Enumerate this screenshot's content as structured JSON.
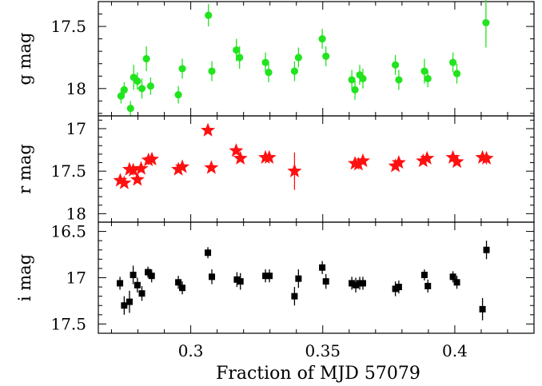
{
  "chart_data": [
    {
      "type": "scatter",
      "ylabel": "g mag",
      "ylim": [
        18.22,
        17.3
      ],
      "inverted_y": true,
      "yticks": [
        17.5,
        18
      ],
      "ytick_labels": [
        "17.5",
        "18"
      ],
      "marker": "circle",
      "color": "#22e41e",
      "points": [
        {
          "x": 0.2736,
          "y": 18.06,
          "err": 0.06
        },
        {
          "x": 0.2748,
          "y": 18.01,
          "err": 0.06
        },
        {
          "x": 0.2772,
          "y": 18.16,
          "err": 0.06
        },
        {
          "x": 0.2784,
          "y": 17.91,
          "err": 0.1
        },
        {
          "x": 0.2798,
          "y": 17.94,
          "err": 0.07
        },
        {
          "x": 0.2815,
          "y": 18.0,
          "err": 0.08
        },
        {
          "x": 0.2832,
          "y": 17.76,
          "err": 0.1
        },
        {
          "x": 0.2848,
          "y": 17.98,
          "err": 0.07
        },
        {
          "x": 0.2953,
          "y": 18.05,
          "err": 0.07
        },
        {
          "x": 0.2968,
          "y": 17.84,
          "err": 0.08
        },
        {
          "x": 0.3067,
          "y": 17.41,
          "err": 0.09
        },
        {
          "x": 0.308,
          "y": 17.86,
          "err": 0.08
        },
        {
          "x": 0.3173,
          "y": 17.69,
          "err": 0.09
        },
        {
          "x": 0.3185,
          "y": 17.75,
          "err": 0.09
        },
        {
          "x": 0.3283,
          "y": 17.79,
          "err": 0.08
        },
        {
          "x": 0.3295,
          "y": 17.87,
          "err": 0.08
        },
        {
          "x": 0.3393,
          "y": 17.86,
          "err": 0.08
        },
        {
          "x": 0.3408,
          "y": 17.75,
          "err": 0.08
        },
        {
          "x": 0.3498,
          "y": 17.6,
          "err": 0.08
        },
        {
          "x": 0.3512,
          "y": 17.74,
          "err": 0.08
        },
        {
          "x": 0.361,
          "y": 17.93,
          "err": 0.08
        },
        {
          "x": 0.3622,
          "y": 18.01,
          "err": 0.08
        },
        {
          "x": 0.364,
          "y": 17.89,
          "err": 0.08
        },
        {
          "x": 0.3652,
          "y": 17.92,
          "err": 0.08
        },
        {
          "x": 0.3775,
          "y": 17.81,
          "err": 0.08
        },
        {
          "x": 0.3788,
          "y": 17.93,
          "err": 0.08
        },
        {
          "x": 0.3885,
          "y": 17.86,
          "err": 0.1
        },
        {
          "x": 0.3898,
          "y": 17.92,
          "err": 0.07
        },
        {
          "x": 0.3993,
          "y": 17.79,
          "err": 0.08
        },
        {
          "x": 0.4008,
          "y": 17.88,
          "err": 0.08
        },
        {
          "x": 0.4118,
          "y": 17.47,
          "err": 0.2
        }
      ]
    },
    {
      "type": "scatter",
      "ylabel": "r mag",
      "ylim": [
        18.1,
        16.85
      ],
      "inverted_y": true,
      "yticks": [
        17,
        17.5,
        18
      ],
      "ytick_labels": [
        "17",
        "17.5",
        "18"
      ],
      "marker": "star",
      "color": "#ff1010",
      "points": [
        {
          "x": 0.2733,
          "y": 17.61,
          "err": 0.03
        },
        {
          "x": 0.2748,
          "y": 17.64,
          "err": 0.03
        },
        {
          "x": 0.2768,
          "y": 17.48,
          "err": 0.03
        },
        {
          "x": 0.2782,
          "y": 17.49,
          "err": 0.03
        },
        {
          "x": 0.2798,
          "y": 17.6,
          "err": 0.03
        },
        {
          "x": 0.2812,
          "y": 17.47,
          "err": 0.03
        },
        {
          "x": 0.284,
          "y": 17.37,
          "err": 0.03
        },
        {
          "x": 0.2853,
          "y": 17.36,
          "err": 0.03
        },
        {
          "x": 0.2953,
          "y": 17.48,
          "err": 0.03
        },
        {
          "x": 0.2968,
          "y": 17.45,
          "err": 0.03
        },
        {
          "x": 0.3065,
          "y": 17.02,
          "err": 0.03
        },
        {
          "x": 0.3078,
          "y": 17.46,
          "err": 0.03
        },
        {
          "x": 0.3172,
          "y": 17.26,
          "err": 0.03
        },
        {
          "x": 0.3188,
          "y": 17.35,
          "err": 0.03
        },
        {
          "x": 0.3283,
          "y": 17.34,
          "err": 0.03
        },
        {
          "x": 0.3297,
          "y": 17.34,
          "err": 0.03
        },
        {
          "x": 0.3393,
          "y": 17.5,
          "err": 0.22
        },
        {
          "x": 0.3622,
          "y": 17.41,
          "err": 0.03
        },
        {
          "x": 0.3635,
          "y": 17.42,
          "err": 0.03
        },
        {
          "x": 0.3652,
          "y": 17.38,
          "err": 0.03
        },
        {
          "x": 0.3775,
          "y": 17.44,
          "err": 0.03
        },
        {
          "x": 0.3788,
          "y": 17.4,
          "err": 0.03
        },
        {
          "x": 0.388,
          "y": 17.38,
          "err": 0.03
        },
        {
          "x": 0.3895,
          "y": 17.35,
          "err": 0.03
        },
        {
          "x": 0.3993,
          "y": 17.34,
          "err": 0.03
        },
        {
          "x": 0.4008,
          "y": 17.39,
          "err": 0.03
        },
        {
          "x": 0.4105,
          "y": 17.34,
          "err": 0.03
        },
        {
          "x": 0.412,
          "y": 17.35,
          "err": 0.07
        }
      ]
    },
    {
      "type": "scatter",
      "ylabel": "i mag",
      "ylim": [
        17.6,
        16.4
      ],
      "inverted_y": true,
      "yticks": [
        16.5,
        17,
        17.5
      ],
      "ytick_labels": [
        "16.5",
        "17",
        "17.5"
      ],
      "marker": "square",
      "color": "#000000",
      "points": [
        {
          "x": 0.2732,
          "y": 17.06,
          "err": 0.07
        },
        {
          "x": 0.2748,
          "y": 17.3,
          "err": 0.1
        },
        {
          "x": 0.2768,
          "y": 17.26,
          "err": 0.12
        },
        {
          "x": 0.2782,
          "y": 16.97,
          "err": 0.1
        },
        {
          "x": 0.2798,
          "y": 17.08,
          "err": 0.08
        },
        {
          "x": 0.2815,
          "y": 17.17,
          "err": 0.08
        },
        {
          "x": 0.2838,
          "y": 16.94,
          "err": 0.06
        },
        {
          "x": 0.2852,
          "y": 16.98,
          "err": 0.07
        },
        {
          "x": 0.2953,
          "y": 17.05,
          "err": 0.07
        },
        {
          "x": 0.2968,
          "y": 17.11,
          "err": 0.07
        },
        {
          "x": 0.3065,
          "y": 16.73,
          "err": 0.06
        },
        {
          "x": 0.308,
          "y": 16.99,
          "err": 0.08
        },
        {
          "x": 0.3175,
          "y": 17.02,
          "err": 0.08
        },
        {
          "x": 0.3188,
          "y": 17.04,
          "err": 0.09
        },
        {
          "x": 0.3283,
          "y": 16.98,
          "err": 0.07
        },
        {
          "x": 0.3298,
          "y": 16.98,
          "err": 0.07
        },
        {
          "x": 0.3393,
          "y": 17.2,
          "err": 0.1
        },
        {
          "x": 0.3408,
          "y": 17.01,
          "err": 0.1
        },
        {
          "x": 0.3498,
          "y": 16.89,
          "err": 0.07
        },
        {
          "x": 0.3512,
          "y": 17.04,
          "err": 0.08
        },
        {
          "x": 0.361,
          "y": 17.06,
          "err": 0.07
        },
        {
          "x": 0.3625,
          "y": 17.08,
          "err": 0.08
        },
        {
          "x": 0.364,
          "y": 17.06,
          "err": 0.07
        },
        {
          "x": 0.3652,
          "y": 17.06,
          "err": 0.07
        },
        {
          "x": 0.3775,
          "y": 17.12,
          "err": 0.08
        },
        {
          "x": 0.3788,
          "y": 17.1,
          "err": 0.07
        },
        {
          "x": 0.3885,
          "y": 16.97,
          "err": 0.06
        },
        {
          "x": 0.3898,
          "y": 17.09,
          "err": 0.07
        },
        {
          "x": 0.3993,
          "y": 16.99,
          "err": 0.06
        },
        {
          "x": 0.4008,
          "y": 17.05,
          "err": 0.07
        },
        {
          "x": 0.4105,
          "y": 17.34,
          "err": 0.12
        },
        {
          "x": 0.412,
          "y": 16.7,
          "err": 0.1
        }
      ]
    }
  ],
  "xaxis": {
    "label": "Fraction of MJD 57079",
    "xlim": [
      0.265,
      0.43
    ],
    "ticks": [
      0.3,
      0.35,
      0.4
    ],
    "tick_labels": [
      "0.3",
      "0.35",
      "0.4"
    ]
  }
}
